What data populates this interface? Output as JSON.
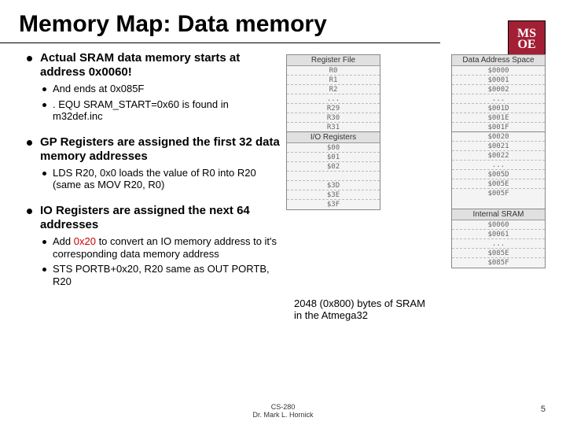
{
  "title": "Memory Map: Data memory",
  "logo": {
    "line1": "MS",
    "line2": "OE",
    "bg": "#a31f34"
  },
  "bullets": [
    {
      "text": "Actual SRAM data memory starts at address 0x0060!",
      "sub": [
        {
          "text": "And ends at 0x085F"
        },
        {
          "text": ". EQU SRAM_START=0x60 is found in m32def.inc"
        }
      ]
    },
    {
      "text": "GP Registers are assigned the first 32 data memory addresses",
      "sub": [
        {
          "text": "LDS R20, 0x0 loads the value of R0 into R20\n(same as MOV R20, R0)"
        }
      ]
    },
    {
      "text": "IO Registers are assigned the next 64 addresses",
      "sub": [
        {
          "html": "Add <span class='red'>0x20</span> to convert an IO memory address to it's corresponding data memory address"
        },
        {
          "text": "STS PORTB+0x20, R20 same as OUT PORTB, R20"
        }
      ]
    }
  ],
  "diagram": {
    "headers": {
      "left": "Register File",
      "right": "Data Address Space"
    },
    "reg_left": [
      "R0",
      "R1",
      "R2",
      "...",
      "R29",
      "R30",
      "R31"
    ],
    "reg_right": [
      "$0000",
      "$0001",
      "$0002",
      "...",
      "$001D",
      "$001E",
      "$001F"
    ],
    "io_left": [
      "$00",
      "$01",
      "$02",
      "",
      "$3D",
      "$3E",
      "$3F"
    ],
    "io_right": [
      "$0020",
      "$0021",
      "$0022",
      "...",
      "$005D",
      "$005E",
      "$005F"
    ],
    "io_label": "I/O Registers",
    "sram_right": [
      "$0060",
      "$0061",
      "...",
      "$085E",
      "$085F"
    ],
    "sram_label": "Internal SRAM",
    "colors": {
      "box_bg": "#f4f4f4",
      "border": "#888888",
      "text": "#555555"
    }
  },
  "annotation": "2048 (0x800) bytes of SRAM in the Atmega32",
  "footer": {
    "course": "CS-280",
    "author": "Dr. Mark L. Hornick",
    "page": "5"
  }
}
